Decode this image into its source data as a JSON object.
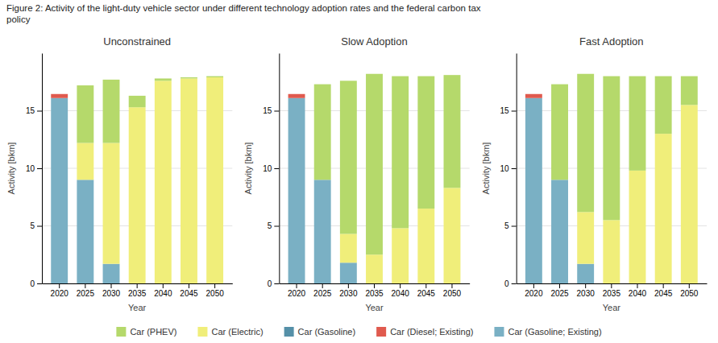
{
  "title": "Figure 2: Activity of the light-duty vehicle sector under different technology adoption rates and the federal carbon tax\npolicy",
  "chart_data": [
    {
      "type": "bar",
      "title": "Unconstrained",
      "xlabel": "Year",
      "ylabel": "Activity [bkm]",
      "categories": [
        "2020",
        "2025",
        "2030",
        "2035",
        "2040",
        "2045",
        "2050"
      ],
      "stacked": true,
      "grid": true,
      "legend": "bottom",
      "ylim": [
        0,
        20
      ],
      "yticks": [
        0,
        5,
        10,
        15
      ],
      "series": [
        {
          "name": "Car (Gasoline; Existing)",
          "color": "#7ab0c4",
          "values": [
            16.1,
            9.0,
            1.7,
            0.0,
            0.0,
            0.0,
            0.0
          ]
        },
        {
          "name": "Car (Diesel; Existing)",
          "color": "#e05a4e",
          "values": [
            0.35,
            0.0,
            0.0,
            0.0,
            0.0,
            0.0,
            0.0
          ]
        },
        {
          "name": "Car (Gasoline)",
          "color": "#5590a8",
          "values": [
            0.0,
            0.0,
            0.0,
            0.0,
            0.0,
            0.0,
            0.0
          ]
        },
        {
          "name": "Car (Electric)",
          "color": "#f0ee7a",
          "values": [
            0.0,
            3.2,
            10.5,
            15.3,
            17.6,
            17.8,
            17.9
          ]
        },
        {
          "name": "Car (PHEV)",
          "color": "#b5d96b",
          "values": [
            0.0,
            5.0,
            5.5,
            1.0,
            0.2,
            0.1,
            0.1
          ]
        }
      ]
    },
    {
      "type": "bar",
      "title": "Slow Adoption",
      "xlabel": "Year",
      "ylabel": "Activity [bkm]",
      "categories": [
        "2020",
        "2025",
        "2030",
        "2035",
        "2040",
        "2045",
        "2050"
      ],
      "stacked": true,
      "grid": true,
      "ylim": [
        0,
        20
      ],
      "yticks": [
        0,
        5,
        10,
        15
      ],
      "series": [
        {
          "name": "Car (Gasoline; Existing)",
          "color": "#7ab0c4",
          "values": [
            16.1,
            9.0,
            1.8,
            0.0,
            0.0,
            0.0,
            0.0
          ]
        },
        {
          "name": "Car (Diesel; Existing)",
          "color": "#e05a4e",
          "values": [
            0.35,
            0.0,
            0.0,
            0.0,
            0.0,
            0.0,
            0.0
          ]
        },
        {
          "name": "Car (Gasoline)",
          "color": "#5590a8",
          "values": [
            0.0,
            0.0,
            0.0,
            0.0,
            0.0,
            0.0,
            0.0
          ]
        },
        {
          "name": "Car (Electric)",
          "color": "#f0ee7a",
          "values": [
            0.0,
            0.0,
            2.5,
            2.5,
            4.8,
            6.5,
            8.3
          ]
        },
        {
          "name": "Car (PHEV)",
          "color": "#b5d96b",
          "values": [
            0.0,
            8.3,
            13.3,
            15.7,
            13.2,
            11.5,
            9.8
          ]
        }
      ]
    },
    {
      "type": "bar",
      "title": "Fast Adoption",
      "xlabel": "Year",
      "ylabel": "Activity [bkm]",
      "categories": [
        "2020",
        "2025",
        "2030",
        "2035",
        "2040",
        "2045",
        "2050"
      ],
      "stacked": true,
      "grid": true,
      "ylim": [
        0,
        20
      ],
      "yticks": [
        0,
        5,
        10,
        15
      ],
      "series": [
        {
          "name": "Car (Gasoline; Existing)",
          "color": "#7ab0c4",
          "values": [
            16.1,
            9.0,
            1.7,
            0.0,
            0.0,
            0.0,
            0.0
          ]
        },
        {
          "name": "Car (Diesel; Existing)",
          "color": "#e05a4e",
          "values": [
            0.35,
            0.0,
            0.0,
            0.0,
            0.0,
            0.0,
            0.0
          ]
        },
        {
          "name": "Car (Gasoline)",
          "color": "#5590a8",
          "values": [
            0.0,
            0.0,
            0.0,
            0.0,
            0.0,
            0.0,
            0.0
          ]
        },
        {
          "name": "Car (Electric)",
          "color": "#f0ee7a",
          "values": [
            0.0,
            0.0,
            4.5,
            5.5,
            9.8,
            13.0,
            15.5
          ]
        },
        {
          "name": "Car (PHEV)",
          "color": "#b5d96b",
          "values": [
            0.0,
            8.3,
            12.0,
            12.5,
            8.2,
            5.0,
            2.5
          ]
        }
      ]
    }
  ]
}
